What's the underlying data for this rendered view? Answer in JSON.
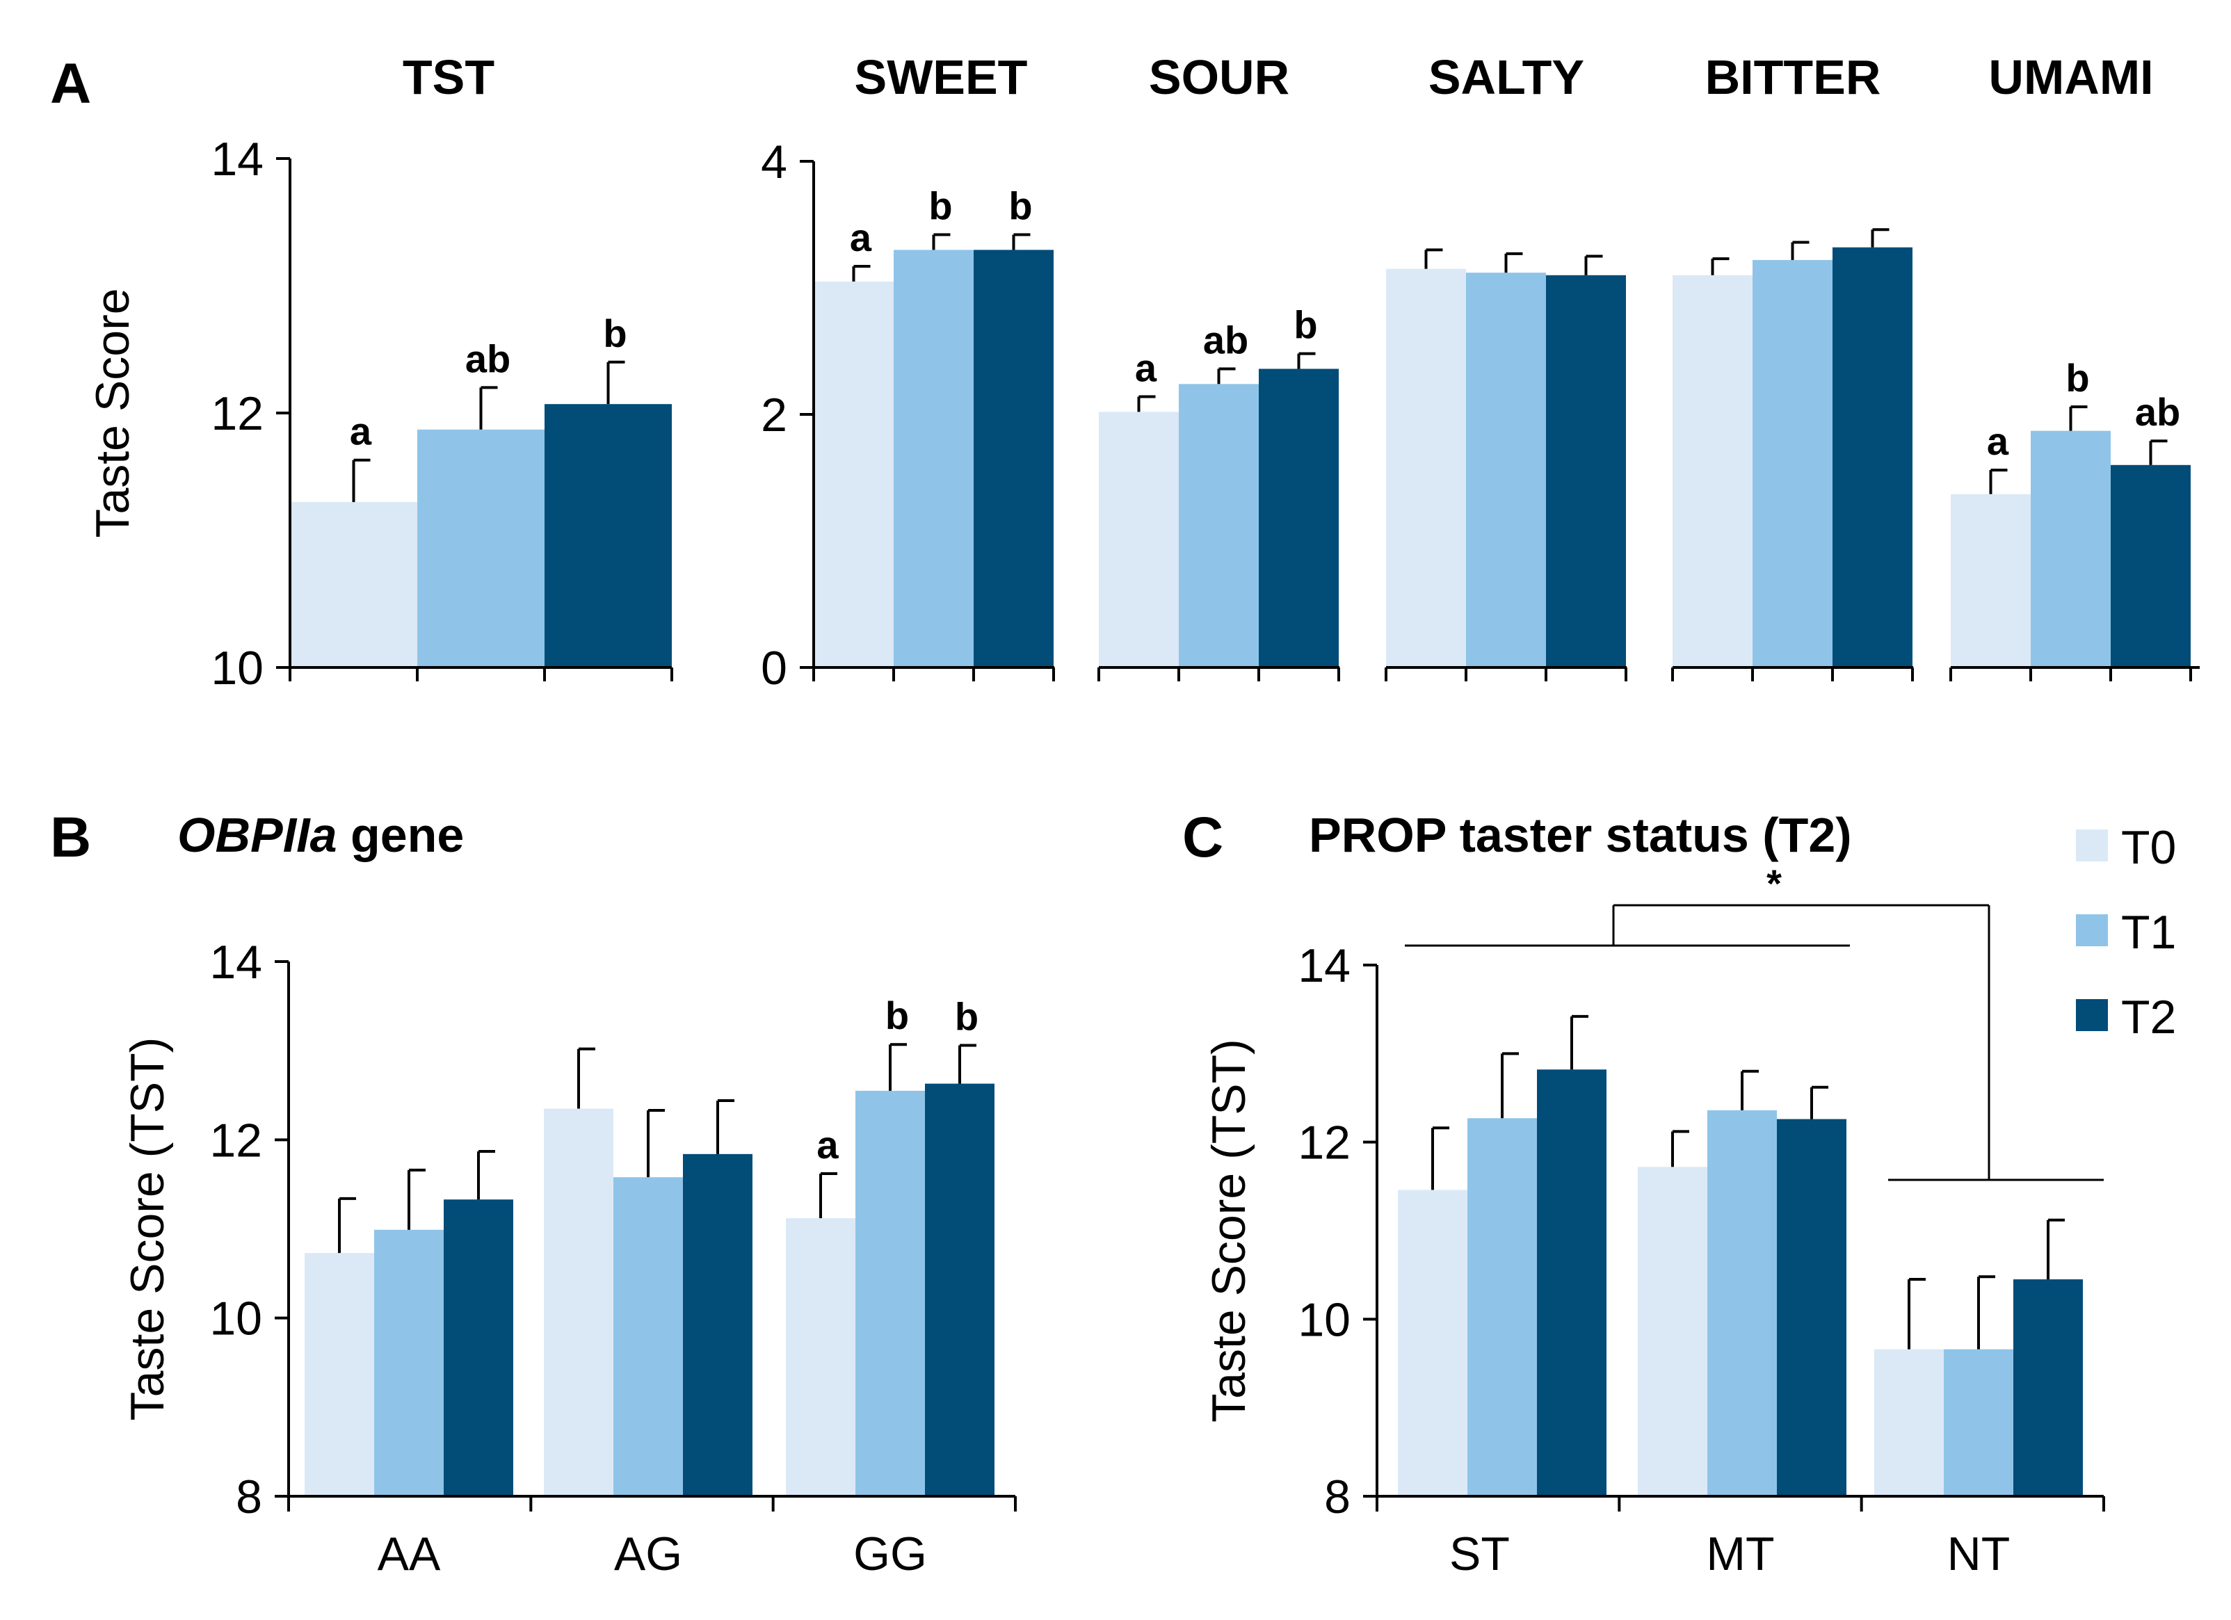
{
  "legend": {
    "items": [
      {
        "label": "T0",
        "color": "#dbe9f6"
      },
      {
        "label": "T1",
        "color": "#8fc4e8"
      },
      {
        "label": "T2",
        "color": "#024c78"
      }
    ]
  },
  "chart_data": [
    {
      "id": "A-tst",
      "panel": "A",
      "type": "bar",
      "title": "TST",
      "ylabel": "Taste Score",
      "ylim": [
        10,
        14
      ],
      "yticks": [
        10,
        12,
        14
      ],
      "groups": [
        {
          "label": "",
          "title": "TST",
          "values": [
            11.3,
            11.87,
            12.07
          ],
          "errors": [
            0.33,
            0.33,
            0.33
          ],
          "sig": [
            "a",
            "ab",
            "b"
          ]
        }
      ]
    },
    {
      "id": "A-tastes",
      "panel": "A",
      "type": "bar",
      "ylabel": "",
      "ylim": [
        0,
        4
      ],
      "yticks": [
        0,
        2,
        4
      ],
      "groups": [
        {
          "label": "",
          "title": "SWEET",
          "values": [
            3.05,
            3.3,
            3.3
          ],
          "errors": [
            0.12,
            0.12,
            0.12
          ],
          "sig": [
            "a",
            "b",
            "b"
          ]
        },
        {
          "label": "",
          "title": "SOUR",
          "values": [
            2.02,
            2.24,
            2.36
          ],
          "errors": [
            0.12,
            0.12,
            0.12
          ],
          "sig": [
            "a",
            "ab",
            "b"
          ]
        },
        {
          "label": "",
          "title": "SALTY",
          "values": [
            3.15,
            3.12,
            3.1
          ],
          "errors": [
            0.15,
            0.15,
            0.15
          ],
          "sig": [
            "",
            "",
            ""
          ]
        },
        {
          "label": "",
          "title": "BITTER",
          "values": [
            3.1,
            3.22,
            3.32
          ],
          "errors": [
            0.13,
            0.14,
            0.14
          ],
          "sig": [
            "",
            "",
            ""
          ]
        },
        {
          "label": "",
          "title": "UMAMI",
          "values": [
            1.37,
            1.87,
            1.6
          ],
          "errors": [
            0.19,
            0.19,
            0.19
          ],
          "sig": [
            "a",
            "b",
            "ab"
          ]
        }
      ]
    },
    {
      "id": "B",
      "panel": "B",
      "type": "bar",
      "title": "OBPIIa gene",
      "title_italic": "OBPIIa",
      "title_rest": " gene",
      "ylabel": "Taste Score (TST)",
      "ylim": [
        8,
        14
      ],
      "yticks": [
        8,
        10,
        12,
        14
      ],
      "groups": [
        {
          "label": "AA",
          "values": [
            10.73,
            10.99,
            11.33
          ],
          "errors": [
            0.61,
            0.67,
            0.54
          ],
          "sig": [
            "",
            "",
            ""
          ]
        },
        {
          "label": "AG",
          "values": [
            12.35,
            11.58,
            11.84
          ],
          "errors": [
            0.67,
            0.75,
            0.6
          ],
          "sig": [
            "",
            "",
            ""
          ]
        },
        {
          "label": "GG",
          "values": [
            11.12,
            12.55,
            12.63
          ],
          "errors": [
            0.5,
            0.52,
            0.43
          ],
          "sig": [
            "a",
            "b",
            "b"
          ]
        }
      ]
    },
    {
      "id": "C",
      "panel": "C",
      "type": "bar",
      "title": "PROP taster status (T2)",
      "ylabel": "Taste Score (TST)",
      "ylim": [
        8,
        14
      ],
      "yticks": [
        8,
        10,
        12,
        14
      ],
      "groups": [
        {
          "label": "ST",
          "values": [
            11.46,
            12.27,
            12.82
          ],
          "errors": [
            0.7,
            0.73,
            0.6
          ],
          "sig": [
            "",
            "",
            ""
          ]
        },
        {
          "label": "MT",
          "values": [
            11.72,
            12.36,
            12.26
          ],
          "errors": [
            0.4,
            0.44,
            0.36
          ],
          "sig": [
            "",
            "",
            ""
          ]
        },
        {
          "label": "NT",
          "values": [
            9.66,
            9.66,
            10.45
          ],
          "errors": [
            0.79,
            0.82,
            0.67
          ],
          "sig": [
            "",
            "",
            ""
          ]
        }
      ],
      "comparison": {
        "label": "*",
        "between": [
          "ST+MT",
          "NT"
        ]
      }
    }
  ]
}
